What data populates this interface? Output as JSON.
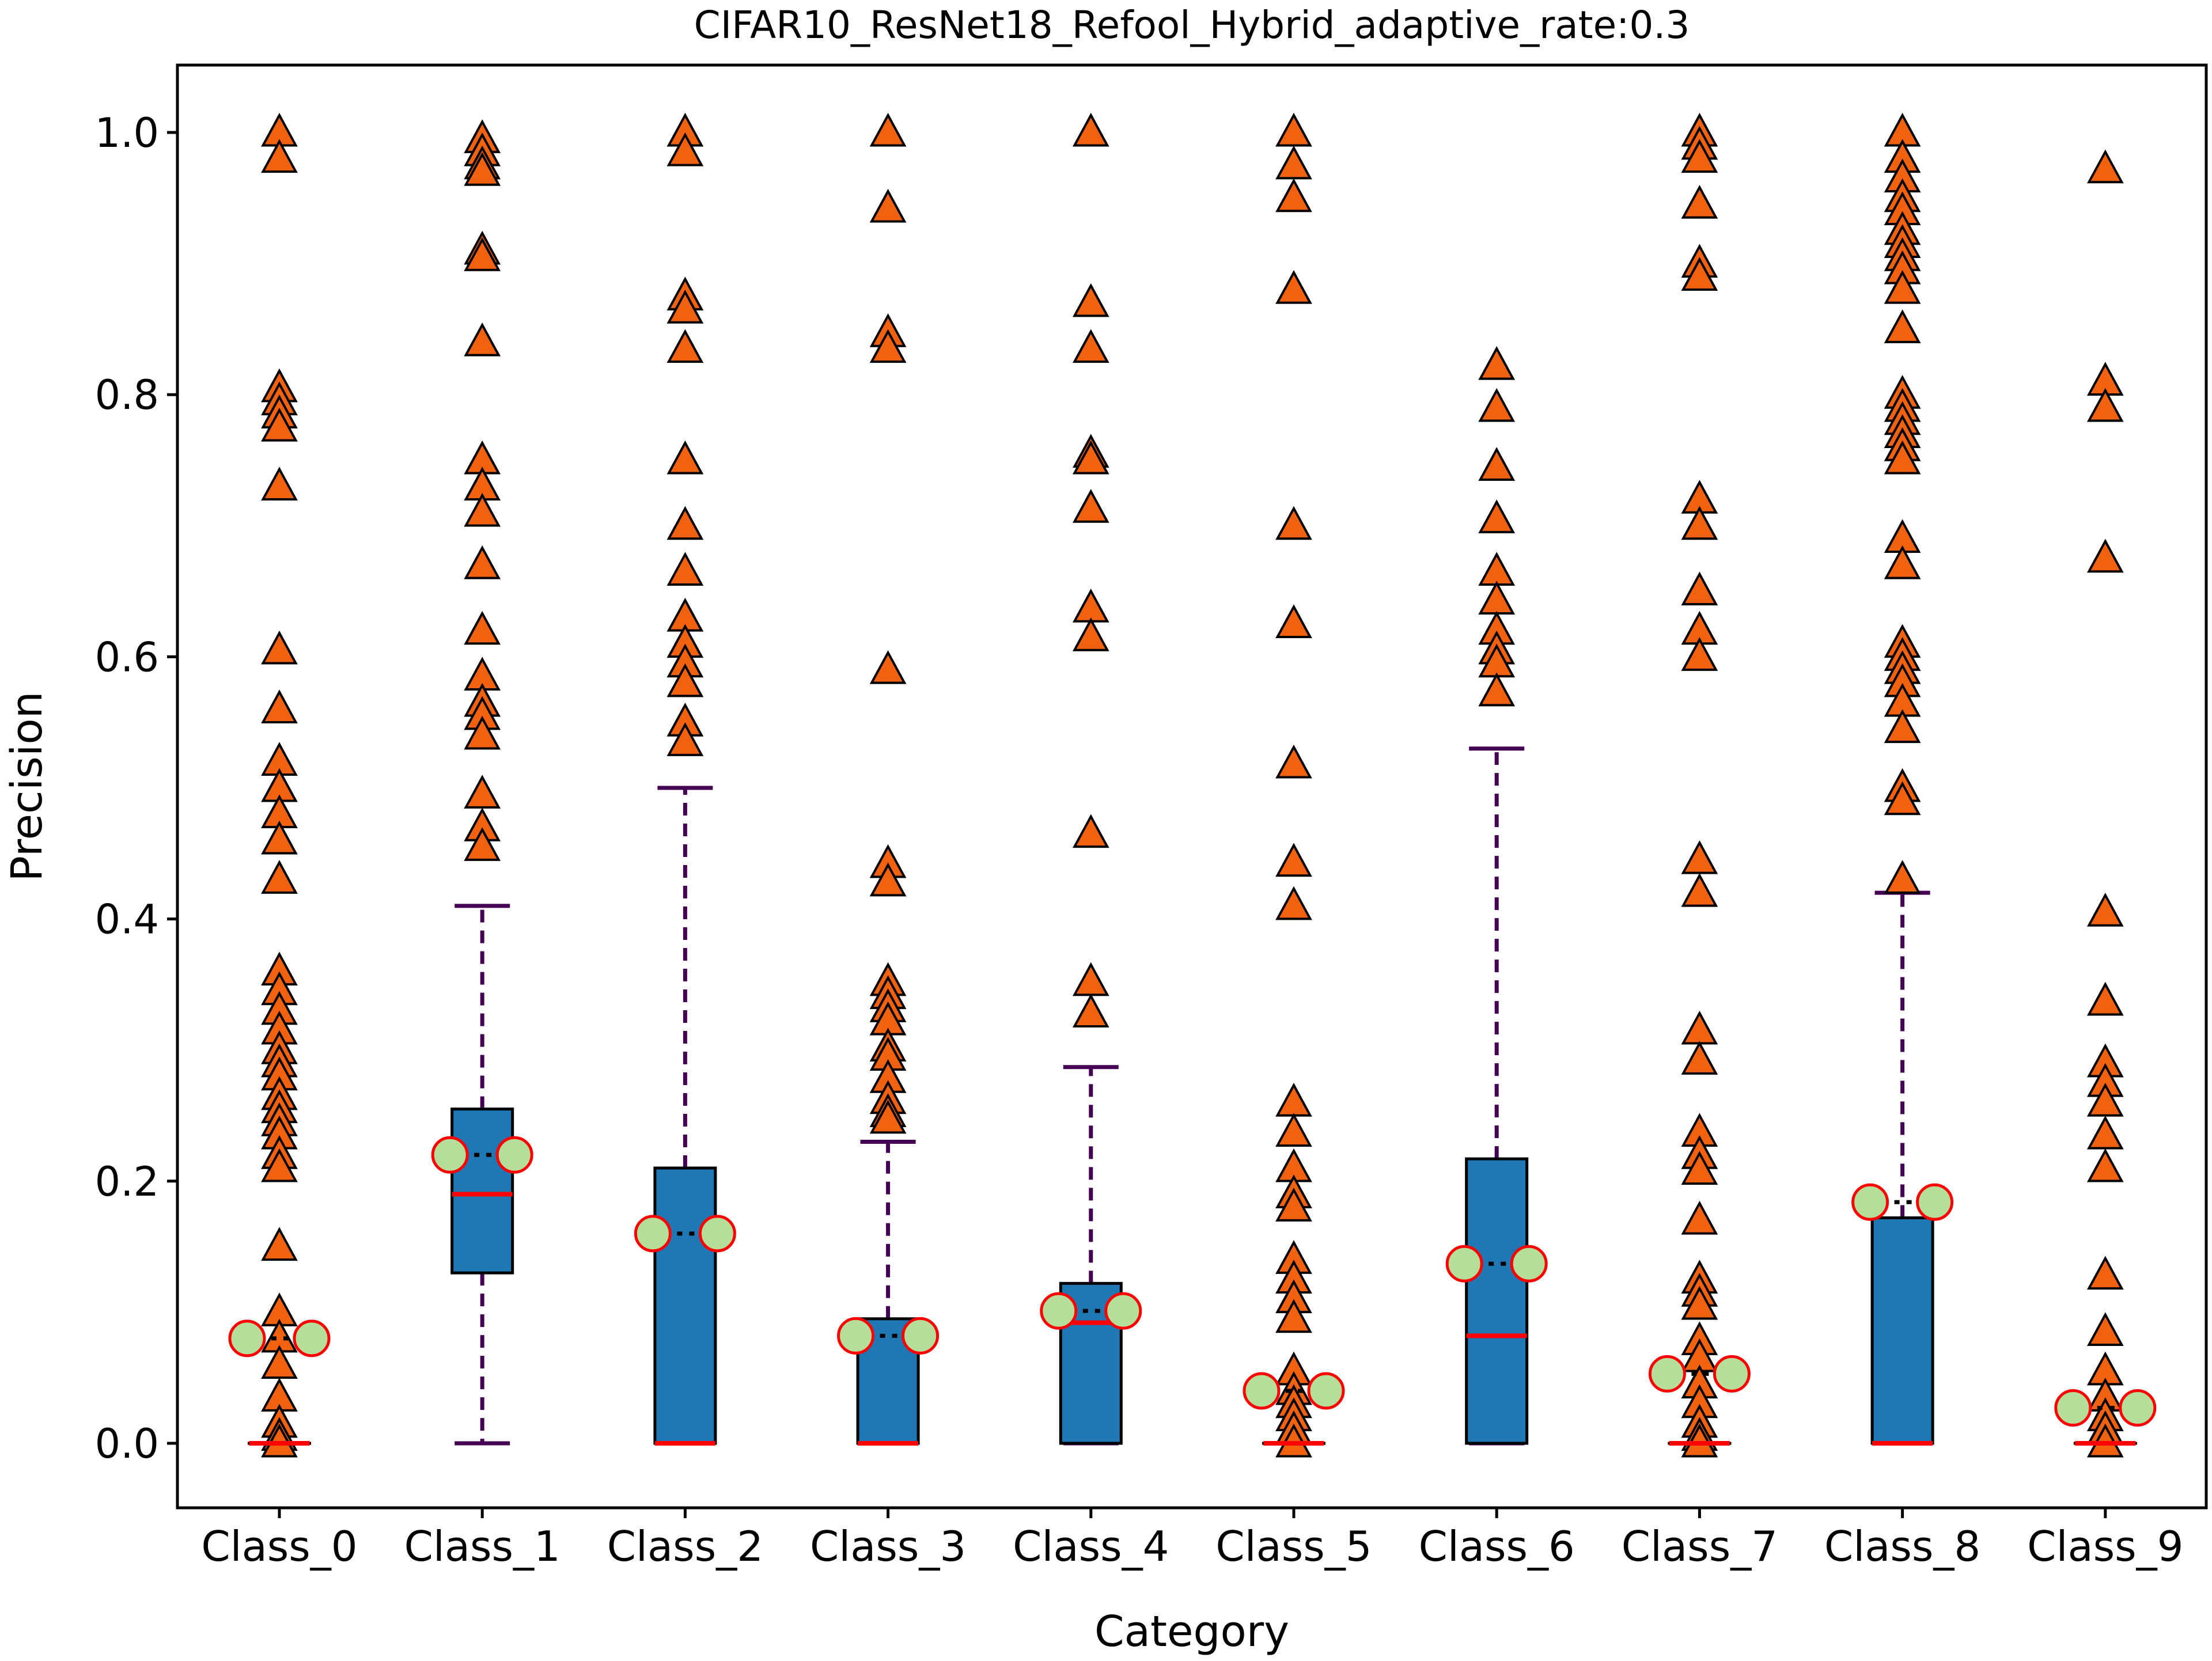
{
  "chart_data": {
    "type": "box",
    "title": "CIFAR10_ResNet18_Refool_Hybrid_adaptive_rate:0.3",
    "xlabel": "Category",
    "ylabel": "Precision",
    "ylim": [
      -0.05,
      1.055
    ],
    "yticks": [
      0.0,
      0.2,
      0.4,
      0.6,
      0.8,
      1.0
    ],
    "ytick_labels": [
      "0.0",
      "0.2",
      "0.4",
      "0.6",
      "0.8",
      "1.0"
    ],
    "grid": false,
    "categories": [
      "Class_0",
      "Class_1",
      "Class_2",
      "Class_3",
      "Class_4",
      "Class_5",
      "Class_6",
      "Class_7",
      "Class_8",
      "Class_9"
    ],
    "colors": {
      "box_fill": "#1f77b4",
      "box_edge": "#000000",
      "median": "#ff0000",
      "whisker": "#440154",
      "mean_marker_fill": "#b5de9a",
      "mean_marker_edge": "#ff0000",
      "mean_line": "#000000",
      "flier_fill": "#f0620f",
      "flier_edge": "#000000"
    },
    "boxes": [
      {
        "q1": 0.0,
        "median": 0.0,
        "q3": 0.0,
        "whisker_low": 0.0,
        "whisker_high": 0.0,
        "mean": 0.08,
        "fliers": [
          1.0,
          0.98,
          0.805,
          0.795,
          0.785,
          0.775,
          0.73,
          0.605,
          0.56,
          0.52,
          0.5,
          0.48,
          0.46,
          0.43,
          0.36,
          0.345,
          0.33,
          0.315,
          0.3,
          0.29,
          0.28,
          0.265,
          0.255,
          0.245,
          0.235,
          0.22,
          0.21,
          0.15,
          0.1,
          0.08,
          0.06,
          0.035,
          0.015,
          0.005,
          0.0
        ]
      },
      {
        "q1": 0.13,
        "median": 0.19,
        "q3": 0.255,
        "whisker_low": 0.0,
        "whisker_high": 0.41,
        "mean": 0.22,
        "fliers": [
          0.995,
          0.985,
          0.975,
          0.97,
          0.91,
          0.905,
          0.84,
          0.75,
          0.73,
          0.71,
          0.67,
          0.62,
          0.585,
          0.565,
          0.555,
          0.54,
          0.495,
          0.47,
          0.455
        ]
      },
      {
        "q1": 0.0,
        "median": 0.0,
        "q3": 0.21,
        "whisker_low": 0.0,
        "whisker_high": 0.5,
        "mean": 0.16,
        "fliers": [
          1.0,
          0.985,
          0.875,
          0.865,
          0.835,
          0.75,
          0.7,
          0.665,
          0.63,
          0.61,
          0.595,
          0.58,
          0.55,
          0.535
        ]
      },
      {
        "q1": 0.0,
        "median": 0.0,
        "q3": 0.095,
        "whisker_low": 0.0,
        "whisker_high": 0.23,
        "mean": 0.082,
        "fliers": [
          1.0,
          0.942,
          0.847,
          0.835,
          0.59,
          0.442,
          0.428,
          0.352,
          0.342,
          0.332,
          0.322,
          0.302,
          0.295,
          0.278,
          0.262,
          0.252,
          0.247
        ]
      },
      {
        "q1": 0.0,
        "median": 0.092,
        "q3": 0.122,
        "whisker_low": 0.0,
        "whisker_high": 0.287,
        "mean": 0.101,
        "fliers": [
          1.0,
          0.87,
          0.835,
          0.755,
          0.75,
          0.713,
          0.637,
          0.615,
          0.465,
          0.352,
          0.328
        ]
      },
      {
        "q1": 0.0,
        "median": 0.0,
        "q3": 0.0,
        "whisker_low": 0.0,
        "whisker_high": 0.0,
        "mean": 0.04,
        "fliers": [
          1.0,
          0.975,
          0.95,
          0.88,
          0.7,
          0.625,
          0.518,
          0.443,
          0.41,
          0.26,
          0.237,
          0.21,
          0.19,
          0.18,
          0.14,
          0.125,
          0.11,
          0.095,
          0.055,
          0.04,
          0.03,
          0.02,
          0.01,
          0.0
        ]
      },
      {
        "q1": 0.0,
        "median": 0.082,
        "q3": 0.217,
        "whisker_low": 0.0,
        "whisker_high": 0.53,
        "mean": 0.137,
        "fliers": [
          0.822,
          0.79,
          0.745,
          0.705,
          0.665,
          0.643,
          0.62,
          0.605,
          0.595,
          0.573
        ]
      },
      {
        "q1": 0.0,
        "median": 0.0,
        "q3": 0.0,
        "whisker_low": 0.0,
        "whisker_high": 0.0,
        "mean": 0.053,
        "fliers": [
          1.0,
          0.99,
          0.98,
          0.945,
          0.9,
          0.89,
          0.72,
          0.7,
          0.65,
          0.62,
          0.6,
          0.445,
          0.42,
          0.315,
          0.292,
          0.237,
          0.22,
          0.208,
          0.17,
          0.125,
          0.115,
          0.105,
          0.078,
          0.065,
          0.045,
          0.03,
          0.015,
          0.005,
          0.0
        ]
      },
      {
        "q1": 0.0,
        "median": 0.0,
        "q3": 0.172,
        "whisker_low": 0.0,
        "whisker_high": 0.42,
        "mean": 0.184,
        "fliers": [
          1.0,
          0.98,
          0.965,
          0.95,
          0.94,
          0.925,
          0.915,
          0.905,
          0.895,
          0.88,
          0.85,
          0.8,
          0.79,
          0.78,
          0.77,
          0.76,
          0.75,
          0.69,
          0.67,
          0.61,
          0.6,
          0.59,
          0.58,
          0.565,
          0.545,
          0.5,
          0.49,
          0.43
        ]
      },
      {
        "q1": 0.0,
        "median": 0.0,
        "q3": 0.0,
        "whisker_low": 0.0,
        "whisker_high": 0.0,
        "mean": 0.027,
        "fliers": [
          0.972,
          0.81,
          0.79,
          0.675,
          0.405,
          0.337,
          0.29,
          0.275,
          0.26,
          0.235,
          0.21,
          0.128,
          0.085,
          0.055,
          0.035,
          0.02,
          0.01,
          0.0
        ]
      }
    ]
  }
}
